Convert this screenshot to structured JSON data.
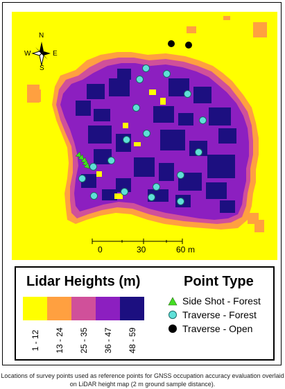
{
  "map": {
    "colors": {
      "background": "#ffff00",
      "class1": "#ffff00",
      "class2": "#ffa040",
      "class3": "#d0509a",
      "class4": "#8c1fc0",
      "class5": "#1c0f80"
    },
    "compass": {
      "n": "N",
      "s": "S",
      "e": "E",
      "w": "W"
    },
    "scale": {
      "labels": [
        "0",
        "30",
        "60"
      ],
      "unit": "m"
    },
    "points": {
      "side_shot_forest_count": 5,
      "traverse_forest_count": 21,
      "traverse_open_count": 2
    }
  },
  "legend": {
    "heights_title": "Lidar Heights (m)",
    "height_classes": [
      {
        "label": "1 - 12",
        "color": "#ffff00"
      },
      {
        "label": "13 - 24",
        "color": "#ffa040"
      },
      {
        "label": "25 - 35",
        "color": "#d0509a"
      },
      {
        "label": "36 - 47",
        "color": "#8c1fc0"
      },
      {
        "label": "48 - 59",
        "color": "#1c0f80"
      }
    ],
    "point_title": "Point Type",
    "point_types": [
      {
        "label": "Side Shot - Forest",
        "symbol": "triangle-icon",
        "color": "#44dd22"
      },
      {
        "label": "Traverse - Forest",
        "symbol": "circle-icon",
        "color": "#5fe0d8"
      },
      {
        "label": "Traverse - Open",
        "symbol": "circle-icon",
        "color": "#000000"
      }
    ]
  },
  "caption": "Locations of survey points used as reference points for GNSS occupation accuracy evaluation overlaid on LiDAR height map (2 m ground sample distance)."
}
